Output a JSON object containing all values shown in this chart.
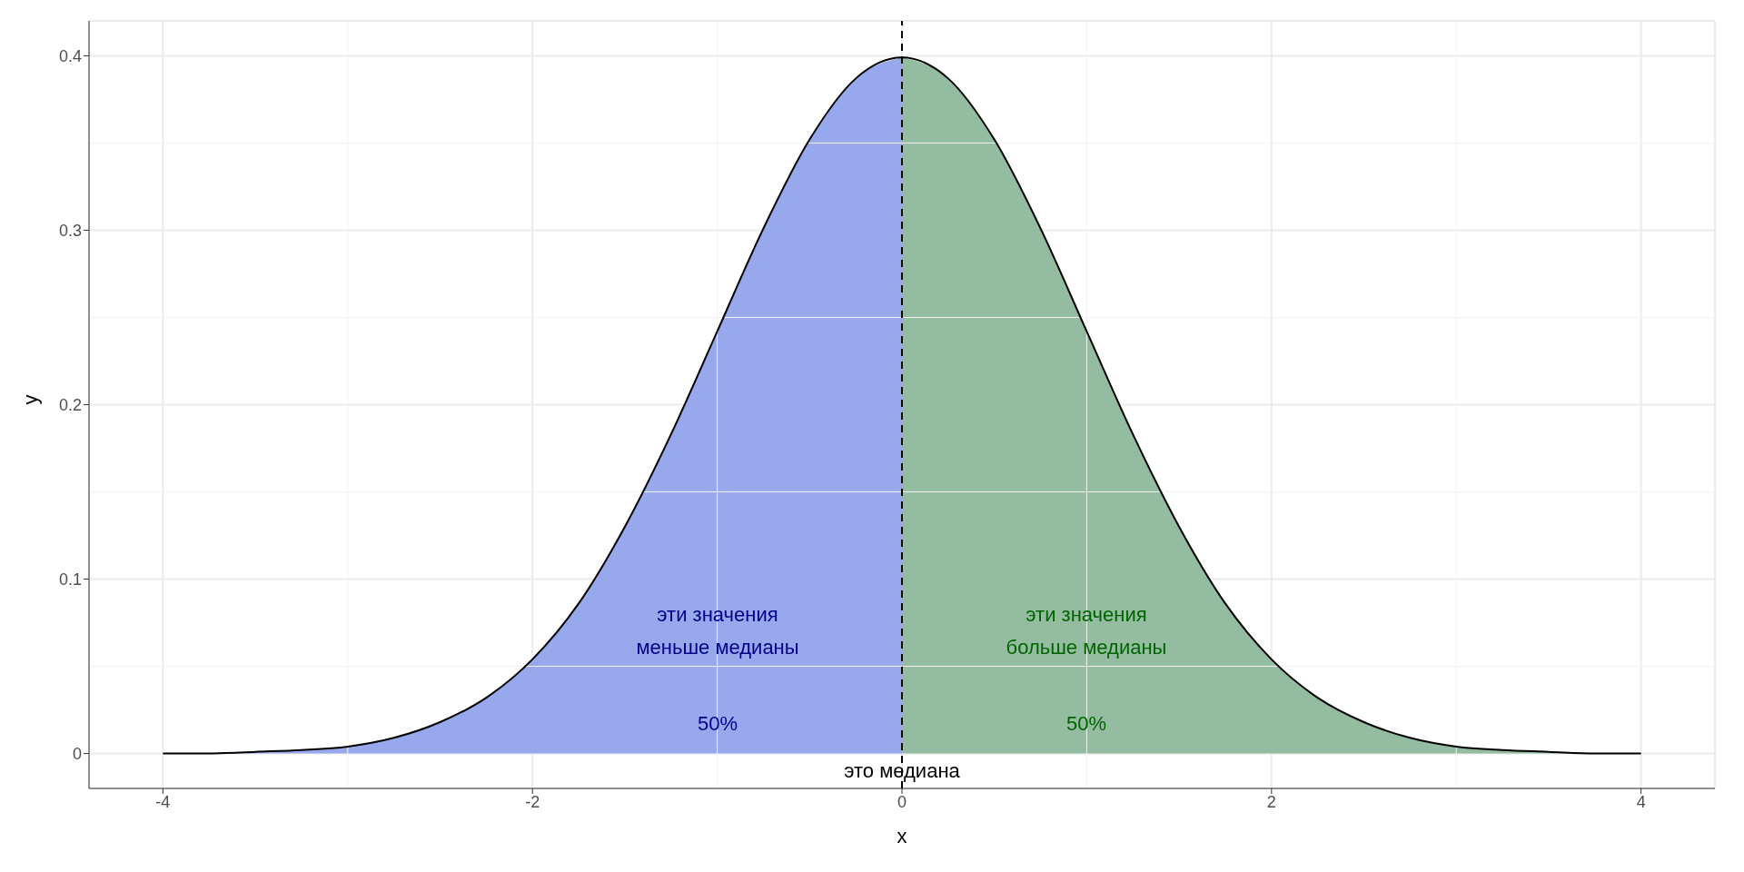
{
  "chart_data": {
    "type": "area",
    "xlabel": "x",
    "ylabel": "y",
    "xlim": [
      -4.4,
      4.4
    ],
    "xticks": [
      -4,
      -2,
      0,
      2,
      4
    ],
    "ylim": [
      -0.02,
      0.42
    ],
    "yticks": [
      0,
      0.1,
      0.2,
      0.3,
      0.4
    ],
    "grid": true,
    "series": [
      {
        "color": "#98a8ec",
        "x": [
          -4,
          -3.75,
          -3.5,
          -3.25,
          -3,
          -2.75,
          -2.5,
          -2.25,
          -2,
          -1.75,
          -1.5,
          -1.25,
          -1,
          -0.75,
          -0.5,
          -0.25,
          0
        ],
        "values": [
          0,
          0,
          0.001,
          0.002,
          0.004,
          0.009,
          0.018,
          0.032,
          0.054,
          0.086,
          0.13,
          0.183,
          0.242,
          0.301,
          0.352,
          0.387,
          0.399
        ]
      },
      {
        "color": "#93bca0",
        "x": [
          0,
          0.25,
          0.5,
          0.75,
          1,
          1.25,
          1.5,
          1.75,
          2,
          2.25,
          2.5,
          2.75,
          3,
          3.25,
          3.5,
          3.75,
          4
        ],
        "values": [
          0.399,
          0.387,
          0.352,
          0.301,
          0.242,
          0.183,
          0.13,
          0.086,
          0.054,
          0.032,
          0.018,
          0.009,
          0.004,
          0.002,
          0.001,
          0,
          0
        ]
      },
      {
        "type": "line",
        "color": "#000000",
        "x": [
          -4,
          -3.75,
          -3.5,
          -3.25,
          -3,
          -2.75,
          -2.5,
          -2.25,
          -2,
          -1.75,
          -1.5,
          -1.25,
          -1,
          -0.75,
          -0.5,
          -0.25,
          0,
          0.25,
          0.5,
          0.75,
          1,
          1.25,
          1.5,
          1.75,
          2,
          2.25,
          2.5,
          2.75,
          3,
          3.25,
          3.5,
          3.75,
          4
        ],
        "values": [
          0,
          0,
          0.001,
          0.002,
          0.004,
          0.009,
          0.018,
          0.032,
          0.054,
          0.086,
          0.13,
          0.183,
          0.242,
          0.301,
          0.352,
          0.387,
          0.399,
          0.387,
          0.352,
          0.301,
          0.242,
          0.183,
          0.13,
          0.086,
          0.054,
          0.032,
          0.018,
          0.009,
          0.004,
          0.002,
          0.001,
          0,
          0
        ]
      }
    ],
    "ref_lines": [
      {
        "axis": "x",
        "value": 0,
        "label": "это медиана",
        "color": "#000000",
        "line_style": "dashed"
      }
    ],
    "annotations": [
      "эти значения\nменьше медианы",
      "50%",
      "эти значения\nбольше медианы",
      "50%"
    ]
  }
}
